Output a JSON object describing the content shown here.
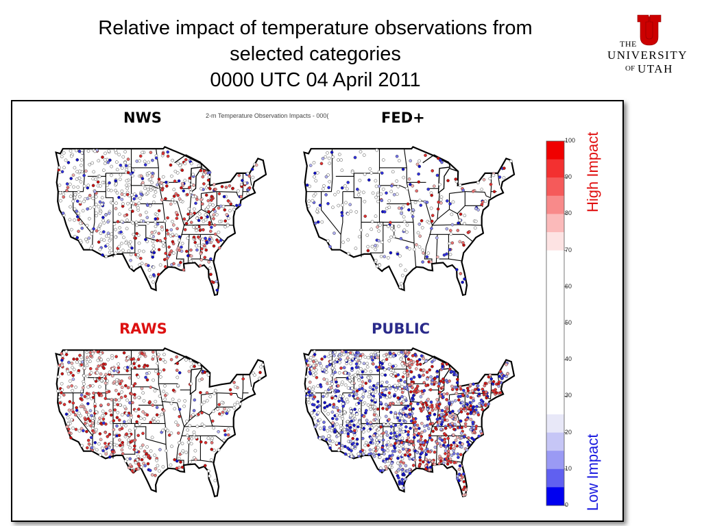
{
  "title": {
    "line1": "Relative impact of temperature observations from",
    "line2": "selected categories",
    "line3": "0000 UTC 04 April 2011"
  },
  "logo": {
    "the": "THE",
    "university": "UNIVERSITY",
    "of": "OF",
    "utah": "UTAH"
  },
  "subtitle": "2-m Temperature Observation Impacts - 000(",
  "panels": [
    {
      "label": "NWS",
      "color": "#000000"
    },
    {
      "label": "FED+",
      "color": "#000000"
    },
    {
      "label": "RAWS",
      "color": "#dd1111"
    },
    {
      "label": "PUBLIC",
      "color": "#2a2a8a"
    }
  ],
  "colorbar": {
    "ticks": [
      "100",
      "90",
      "80",
      "70",
      "60",
      "50",
      "40",
      "30",
      "20",
      "10",
      "0"
    ],
    "high_label": "High Impact",
    "low_label": "Low Impact",
    "high_color": "#e01010",
    "low_color": "#1a1ae0"
  }
}
